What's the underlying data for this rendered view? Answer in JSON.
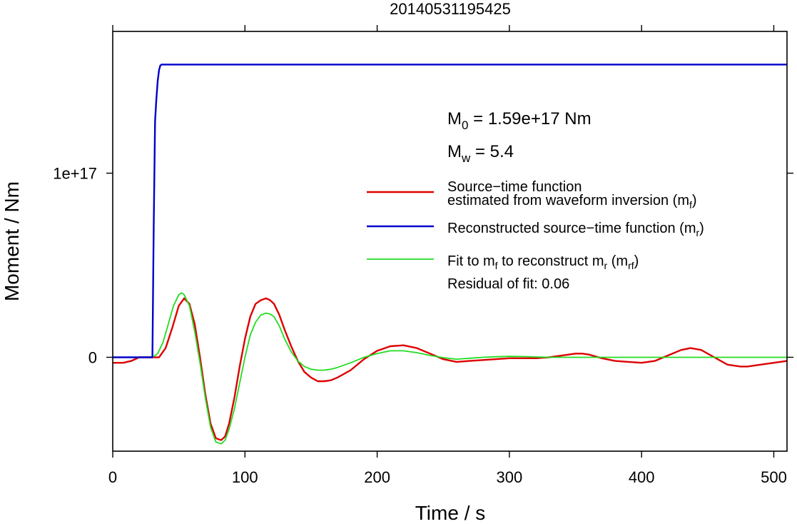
{
  "chart_data": {
    "type": "line",
    "title": "20140531195425",
    "xlabel": "Time / s",
    "ylabel": "Moment / Nm",
    "xlim": [
      0,
      510
    ],
    "ylim": [
      -5.1e+16,
      1.77e+17
    ],
    "x_ticks": [
      0,
      100,
      200,
      300,
      400,
      500
    ],
    "y_ticks": [
      {
        "value": 0,
        "label": "0"
      },
      {
        "value": 1e+17,
        "label": "1e+17"
      }
    ],
    "grid": false,
    "legend_position": "right",
    "annotations": {
      "m0": {
        "main": "M",
        "sub": "0",
        "rest": " = 1.59e+17 Nm"
      },
      "mw": {
        "main": "M",
        "sub": "w",
        "rest": " = 5.4"
      }
    },
    "legend": [
      {
        "key": "mf",
        "color": "#dd0000",
        "width": 2.4,
        "line1": "Source−time function",
        "line2": "estimated from waveform inversion (m",
        "sub": "f",
        "tail": ")"
      },
      {
        "key": "mr",
        "color": "#0000cc",
        "width": 2.4,
        "line1": "Reconstructed source−time function (m",
        "sub": "r",
        "tail": ")"
      },
      {
        "key": "mrf",
        "color": "#22dd22",
        "width": 1.8,
        "parts": [
          {
            "t": "Fit to m",
            "sub": "f"
          },
          {
            "t": " to reconstruct m",
            "sub": "r"
          },
          {
            "t": " (m",
            "sub": "rf"
          },
          {
            "t": ")"
          }
        ]
      }
    ],
    "residual_text": "Residual of fit: 0.06",
    "series": [
      {
        "key": "mf",
        "color": "#dd0000",
        "width": 2.4,
        "x": [
          0,
          8,
          14,
          20,
          25,
          30,
          35,
          40,
          45,
          50,
          54,
          58,
          62,
          66,
          70,
          74,
          78,
          82,
          85,
          88,
          92,
          96,
          100,
          104,
          108,
          112,
          116,
          119,
          122,
          126,
          130,
          135,
          140,
          145,
          150,
          155,
          160,
          165,
          170,
          180,
          190,
          200,
          210,
          220,
          230,
          240,
          250,
          260,
          270,
          280,
          290,
          300,
          310,
          320,
          330,
          340,
          350,
          355,
          360,
          370,
          380,
          390,
          400,
          410,
          420,
          430,
          437,
          445,
          455,
          465,
          475,
          480,
          490,
          500,
          510
        ],
        "y": [
          -3000000000000000.0,
          -3000000000000000.0,
          -2000000000000000.0,
          0,
          0,
          0,
          0,
          5000000000000000.0,
          1.6e+16,
          2.8e+16,
          3.2e+16,
          2.9e+16,
          1.8e+16,
          0,
          -2e+16,
          -3.6e+16,
          -4.4e+16,
          -4.5e+16,
          -4.3e+16,
          -3.6e+16,
          -2.2e+16,
          -5000000000000000.0,
          1e+16,
          2.2e+16,
          2.9e+16,
          3.1e+16,
          3.2e+16,
          3.1e+16,
          2.9e+16,
          2.3e+16,
          1.5e+16,
          6000000000000000.0,
          -2000000000000000.0,
          -8000000000000000.0,
          -1.1e+16,
          -1.3e+16,
          -1.3e+16,
          -1.25e+16,
          -1.1e+16,
          -7000000000000000.0,
          -1000000000000000.0,
          3500000000000000.0,
          6000000000000000.0,
          6500000000000000.0,
          5000000000000000.0,
          2000000000000000.0,
          -1000000000000000.0,
          -2500000000000000.0,
          -2000000000000000.0,
          -1500000000000000.0,
          -1000000000000000.0,
          -500000000000000.0,
          -500000000000000.0,
          -500000000000000.0,
          0,
          1000000000000000.0,
          2000000000000000.0,
          2000000000000000.0,
          1500000000000000.0,
          -500000000000000.0,
          -2000000000000000.0,
          -2500000000000000.0,
          -3000000000000000.0,
          -2000000000000000.0,
          1000000000000000.0,
          4000000000000000.0,
          5000000000000000.0,
          4000000000000000.0,
          0,
          -4000000000000000.0,
          -5000000000000000.0,
          -5000000000000000.0,
          -4000000000000000.0,
          -3000000000000000.0,
          -2000000000000000.0
        ]
      },
      {
        "key": "mrf",
        "color": "#22dd22",
        "width": 1.8,
        "x": [
          30,
          34,
          38,
          42,
          46,
          50,
          52,
          54,
          58,
          62,
          66,
          70,
          74,
          78,
          82,
          85,
          88,
          92,
          96,
          100,
          104,
          108,
          112,
          116,
          119,
          122,
          126,
          130,
          135,
          140,
          145,
          150,
          155,
          160,
          165,
          170,
          180,
          190,
          200,
          210,
          220,
          230,
          240,
          250,
          260,
          270,
          280,
          290,
          300,
          310,
          320,
          330,
          340,
          350,
          360,
          380,
          400,
          420,
          440,
          460,
          480,
          510
        ],
        "y": [
          0,
          2000000000000000.0,
          8000000000000000.0,
          1.8e+16,
          2.8e+16,
          3.4e+16,
          3.5e+16,
          3.4e+16,
          2.8e+16,
          1.4e+16,
          -3000000000000000.0,
          -2.2e+16,
          -3.8e+16,
          -4.6e+16,
          -4.7e+16,
          -4.5e+16,
          -3.9e+16,
          -2.8e+16,
          -1.4e+16,
          0,
          1.2e+16,
          1.9e+16,
          2.3e+16,
          2.4e+16,
          2.35e+16,
          2.2e+16,
          1.7e+16,
          1e+16,
          3000000000000000.0,
          -2000000000000000.0,
          -5000000000000000.0,
          -6500000000000000.0,
          -7000000000000000.0,
          -7000000000000000.0,
          -6500000000000000.0,
          -5500000000000000.0,
          -3000000000000000.0,
          0,
          2000000000000000.0,
          3500000000000000.0,
          3500000000000000.0,
          2500000000000000.0,
          1000000000000000.0,
          -200000000000000.0,
          -1000000000000000.0,
          -500000000000000.0,
          0,
          300000000000000.0,
          500000000000000.0,
          400000000000000.0,
          200000000000000.0,
          0,
          0,
          0,
          0,
          0,
          0,
          0,
          0,
          0,
          0,
          0
        ]
      },
      {
        "key": "mr",
        "color": "#0000cc",
        "width": 2.4,
        "x": [
          0,
          10,
          20,
          30,
          31,
          32,
          33,
          34,
          35,
          36,
          37,
          38,
          510
        ],
        "y": [
          0,
          0,
          0,
          0,
          7e+16,
          1.28e+17,
          1.4e+17,
          1.5e+17,
          1.56e+17,
          1.585e+17,
          1.59e+17,
          1.59e+17,
          1.59e+17
        ]
      }
    ]
  }
}
